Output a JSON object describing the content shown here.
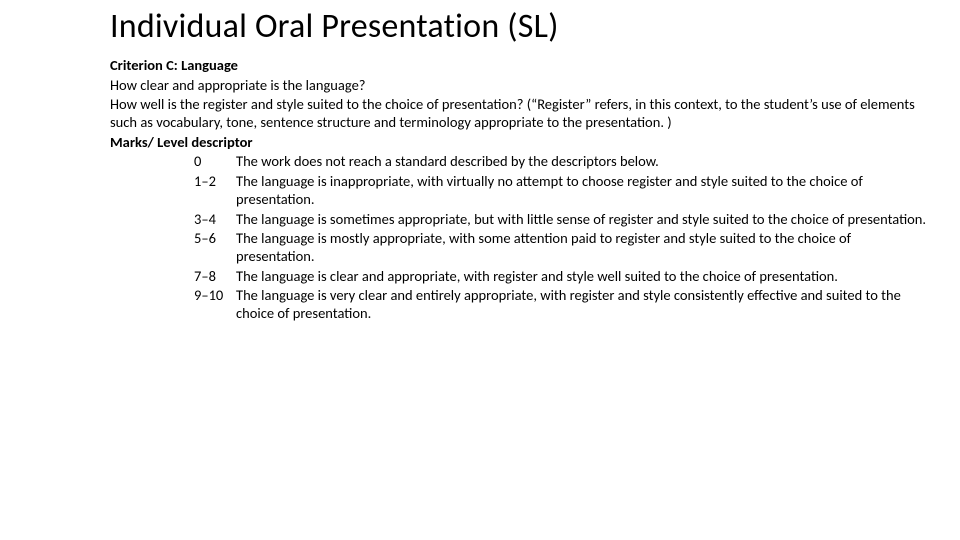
{
  "title": "Individual Oral Presentation (SL)",
  "criterion_label": "Criterion C: Language",
  "q1": "How clear and appropriate is the language?",
  "q2": "How well is the register and style suited to the choice of presentation? (“Register” refers, in this context, to the student’s use of elements such as vocabulary, tone, sentence structure and terminology appropriate to the presentation. )",
  "marks_label": "Marks/ Level descriptor",
  "levels": [
    {
      "marks": "0",
      "desc": "The work does not reach a standard described by the descriptors below."
    },
    {
      "marks": "1–2",
      "desc": "The language is inappropriate, with virtually no attempt to choose register and style suited to the choice of presentation."
    },
    {
      "marks": "3–4",
      "desc": "The language is sometimes appropriate, but with little sense of register and style suited to the choice of presentation."
    },
    {
      "marks": "5–6",
      "desc": "The language is mostly appropriate, with some attention paid to register and style suited to the choice of presentation."
    },
    {
      "marks": "7–8",
      "desc": "The language is clear and appropriate, with register and style well suited to the choice of presentation."
    },
    {
      "marks": "9–10",
      "desc": "The language is very clear and entirely appropriate, with register and style consistently effective and suited to the choice of presentation."
    }
  ]
}
